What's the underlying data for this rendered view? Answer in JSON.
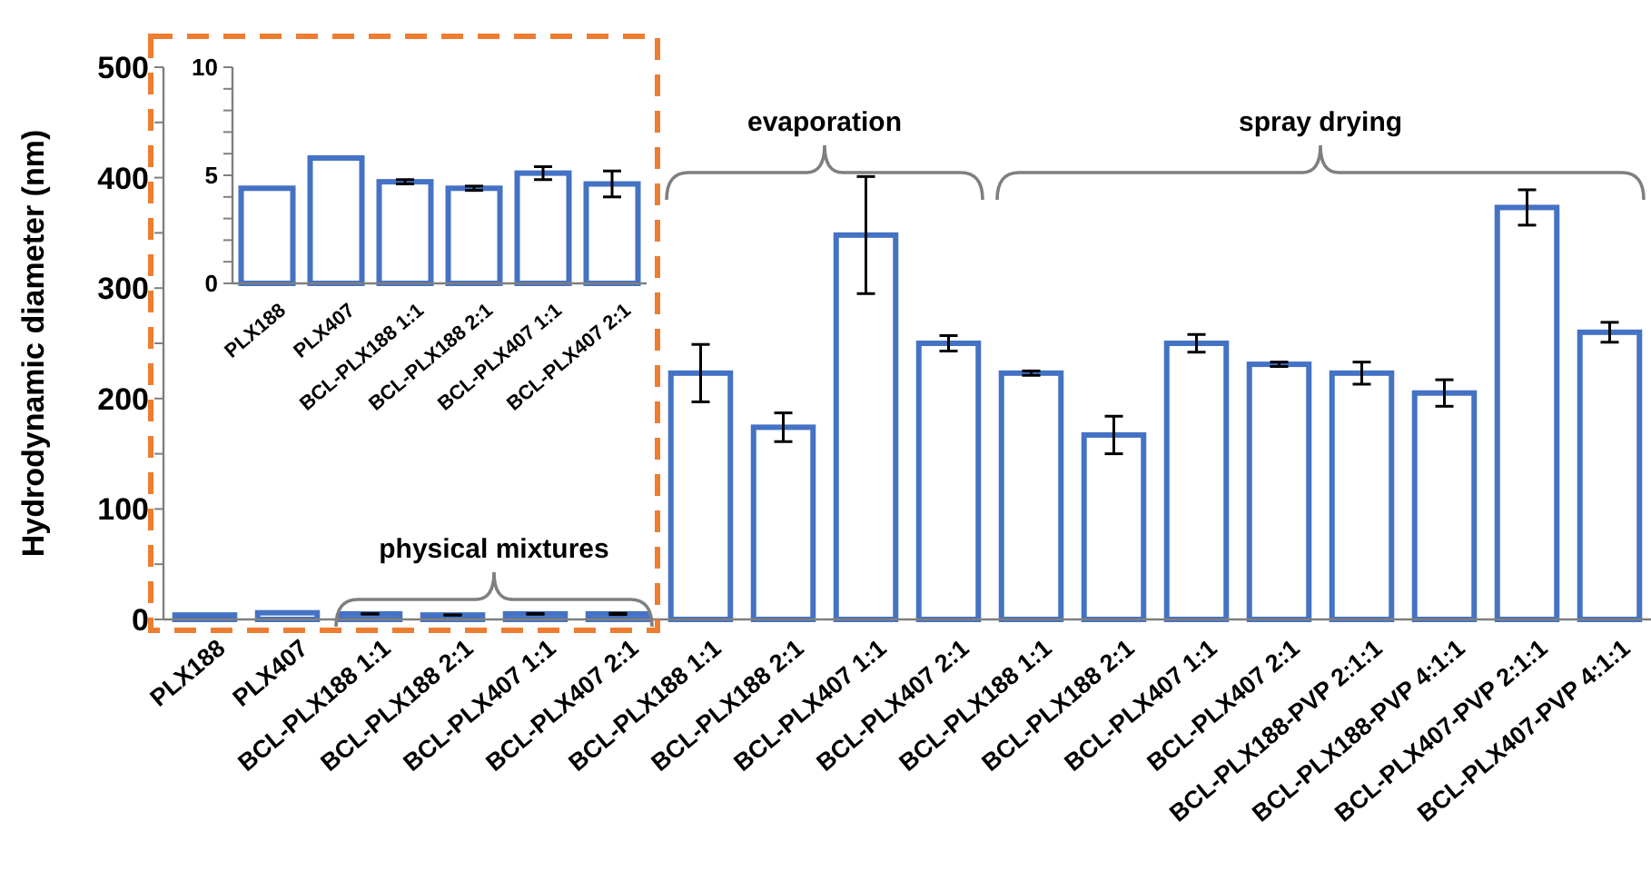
{
  "chart_data": [
    {
      "type": "bar",
      "ylabel": "Hydrodynamic  diameter (nm)",
      "categories": [
        "PLX188",
        "PLX407",
        "BCL-PLX188 1:1",
        "BCL-PLX188 2:1",
        "BCL-PLX407 1:1",
        "BCL-PLX407 2:1",
        "BCL-PLX188 1:1",
        "BCL-PLX188 2:1",
        "BCL-PLX407 1:1",
        "BCL-PLX407 2:1",
        "BCL-PLX188 1:1",
        "BCL-PLX188 2:1",
        "BCL-PLX407 1:1",
        "BCL-PLX407 2:1",
        "BCL-PLX188-PVP 2:1:1",
        "BCL-PLX188-PVP 4:1:1",
        "BCL-PLX407-PVP 2:1:1",
        "BCL-PLX407-PVP 4:1:1"
      ],
      "series": [
        {
          "color": "#4472c4",
          "values": [
            4,
            6,
            5,
            4,
            5,
            5,
            223,
            174,
            348,
            250,
            223,
            167,
            250,
            231,
            223,
            205,
            373,
            260
          ],
          "errors": [
            null,
            null,
            0.1,
            0.1,
            0.3,
            0.6,
            26,
            13,
            53,
            7,
            2,
            17,
            8,
            2,
            10,
            12,
            16,
            9
          ]
        }
      ],
      "ylim": [
        0,
        500
      ],
      "yticks": [
        0,
        {
          "value": 50,
          "label": null
        },
        100,
        {
          "value": 150,
          "label": null
        },
        200,
        {
          "value": 250,
          "label": null
        },
        300,
        {
          "value": 350,
          "label": null
        },
        400,
        {
          "value": 450,
          "label": null
        },
        500
      ],
      "annotations": [
        "physical mixtures",
        "evaporation",
        "spray drying"
      ]
    },
    {
      "type": "bar",
      "categories": [
        "PLX188",
        "PLX407",
        "BCL-PLX188 1:1",
        "BCL-PLX188 2:1",
        "BCL-PLX407 1:1",
        "BCL-PLX407 2:1"
      ],
      "series": [
        {
          "color": "#4472c4",
          "values": [
            4.4,
            5.8,
            4.7,
            4.4,
            5.1,
            4.6
          ],
          "errors": [
            null,
            null,
            0.1,
            0.1,
            0.3,
            0.6
          ]
        }
      ],
      "ylim": [
        0,
        10
      ],
      "yticks": [
        0,
        {
          "value": 1,
          "label": null
        },
        {
          "value": 2,
          "label": null
        },
        {
          "value": 3,
          "label": null
        },
        {
          "value": 4,
          "label": null
        },
        5,
        {
          "value": 6,
          "label": null
        },
        {
          "value": 7,
          "label": null
        },
        {
          "value": 8,
          "label": null
        },
        {
          "value": 9,
          "label": null
        },
        10
      ]
    }
  ]
}
